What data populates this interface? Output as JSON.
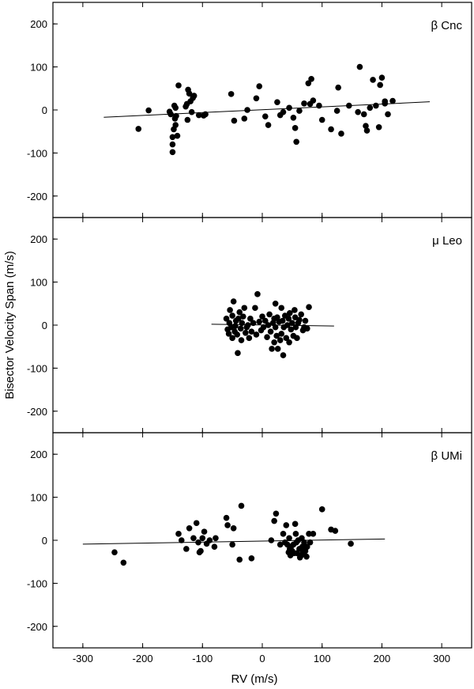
{
  "chart_data": [
    {
      "type": "scatter",
      "label": "β Cnc",
      "xlim": [
        -350,
        350
      ],
      "ylim": [
        -250,
        250
      ],
      "x_ticks": [
        -300,
        -200,
        -100,
        0,
        100,
        200,
        300
      ],
      "y_ticks": [
        -200,
        -100,
        0,
        100,
        200
      ],
      "fit_line": {
        "x": [
          -265,
          280
        ],
        "y": [
          -17,
          19
        ]
      },
      "points": [
        [
          -207,
          -44
        ],
        [
          -190,
          -1
        ],
        [
          -155,
          -4
        ],
        [
          -153,
          -10
        ],
        [
          -150,
          -63
        ],
        [
          -150,
          -80
        ],
        [
          -150,
          -98
        ],
        [
          -148,
          -45
        ],
        [
          -146,
          -20
        ],
        [
          -145,
          -35
        ],
        [
          -147,
          10
        ],
        [
          -145,
          5
        ],
        [
          -144,
          -14
        ],
        [
          -142,
          -60
        ],
        [
          -140,
          57
        ],
        [
          -128,
          8
        ],
        [
          -126,
          14
        ],
        [
          -125,
          -23
        ],
        [
          -124,
          47
        ],
        [
          -122,
          38
        ],
        [
          -120,
          20
        ],
        [
          -118,
          -5
        ],
        [
          -116,
          28
        ],
        [
          -114,
          33
        ],
        [
          -106,
          -12
        ],
        [
          -98,
          -13
        ],
        [
          -95,
          -10
        ],
        [
          -52,
          37
        ],
        [
          -47,
          -25
        ],
        [
          -30,
          -20
        ],
        [
          -25,
          0
        ],
        [
          -10,
          27
        ],
        [
          -5,
          55
        ],
        [
          5,
          -15
        ],
        [
          10,
          -35
        ],
        [
          25,
          18
        ],
        [
          30,
          -12
        ],
        [
          35,
          -5
        ],
        [
          45,
          5
        ],
        [
          52,
          -18
        ],
        [
          55,
          -42
        ],
        [
          57,
          -74
        ],
        [
          62,
          -2
        ],
        [
          70,
          15
        ],
        [
          77,
          62
        ],
        [
          80,
          14
        ],
        [
          82,
          72
        ],
        [
          85,
          22
        ],
        [
          95,
          10
        ],
        [
          100,
          -23
        ],
        [
          115,
          -45
        ],
        [
          125,
          -2
        ],
        [
          127,
          52
        ],
        [
          132,
          -55
        ],
        [
          145,
          10
        ],
        [
          160,
          -5
        ],
        [
          163,
          100
        ],
        [
          170,
          -10
        ],
        [
          173,
          -37
        ],
        [
          175,
          -48
        ],
        [
          180,
          5
        ],
        [
          185,
          70
        ],
        [
          190,
          10
        ],
        [
          195,
          -40
        ],
        [
          197,
          58
        ],
        [
          200,
          75
        ],
        [
          205,
          20
        ],
        [
          205,
          15
        ],
        [
          210,
          -10
        ],
        [
          218,
          21
        ]
      ]
    },
    {
      "type": "scatter",
      "label": "μ Leo",
      "xlim": [
        -350,
        350
      ],
      "ylim": [
        -250,
        250
      ],
      "x_ticks": [
        -300,
        -200,
        -100,
        0,
        100,
        200,
        300
      ],
      "y_ticks": [
        -200,
        -100,
        0,
        100,
        200
      ],
      "fit_line": {
        "x": [
          -85,
          120
        ],
        "y": [
          2,
          -2
        ]
      },
      "points": [
        [
          -60,
          15
        ],
        [
          -58,
          -10
        ],
        [
          -56,
          -20
        ],
        [
          -55,
          5
        ],
        [
          -54,
          35
        ],
        [
          -52,
          -5
        ],
        [
          -50,
          22
        ],
        [
          -50,
          -30
        ],
        [
          -48,
          55
        ],
        [
          -46,
          -15
        ],
        [
          -45,
          -2
        ],
        [
          -44,
          10
        ],
        [
          -42,
          -22
        ],
        [
          -41,
          -65
        ],
        [
          -40,
          15
        ],
        [
          -38,
          30
        ],
        [
          -36,
          -8
        ],
        [
          -35,
          -35
        ],
        [
          -34,
          5
        ],
        [
          -32,
          20
        ],
        [
          -30,
          40
        ],
        [
          -28,
          -18
        ],
        [
          -26,
          -5
        ],
        [
          -24,
          0
        ],
        [
          -22,
          -30
        ],
        [
          -20,
          15
        ],
        [
          -18,
          -15
        ],
        [
          -15,
          5
        ],
        [
          -12,
          40
        ],
        [
          -10,
          -22
        ],
        [
          -8,
          72
        ],
        [
          -5,
          8
        ],
        [
          -2,
          -12
        ],
        [
          0,
          20
        ],
        [
          2,
          -5
        ],
        [
          5,
          10
        ],
        [
          8,
          -28
        ],
        [
          10,
          0
        ],
        [
          12,
          25
        ],
        [
          14,
          -15
        ],
        [
          16,
          -55
        ],
        [
          18,
          5
        ],
        [
          20,
          15
        ],
        [
          20,
          -40
        ],
        [
          22,
          50
        ],
        [
          22,
          -5
        ],
        [
          24,
          -25
        ],
        [
          25,
          18
        ],
        [
          26,
          -55
        ],
        [
          28,
          8
        ],
        [
          30,
          -35
        ],
        [
          32,
          -20
        ],
        [
          32,
          40
        ],
        [
          34,
          10
        ],
        [
          35,
          -70
        ],
        [
          36,
          -5
        ],
        [
          38,
          22
        ],
        [
          40,
          -30
        ],
        [
          42,
          0
        ],
        [
          44,
          15
        ],
        [
          45,
          -40
        ],
        [
          46,
          28
        ],
        [
          48,
          -10
        ],
        [
          50,
          5
        ],
        [
          52,
          -25
        ],
        [
          54,
          35
        ],
        [
          55,
          18
        ],
        [
          56,
          -5
        ],
        [
          58,
          -30
        ],
        [
          60,
          5
        ],
        [
          62,
          12
        ],
        [
          65,
          25
        ],
        [
          68,
          -12
        ],
        [
          70,
          -5
        ],
        [
          72,
          10
        ],
        [
          75,
          -8
        ],
        [
          78,
          42
        ]
      ]
    },
    {
      "type": "scatter",
      "label": "β UMi",
      "xlim": [
        -350,
        350
      ],
      "ylim": [
        -250,
        250
      ],
      "x_ticks": [
        -300,
        -200,
        -100,
        0,
        100,
        200,
        300
      ],
      "y_ticks": [
        -200,
        -100,
        0,
        100,
        200
      ],
      "fit_line": {
        "x": [
          -300,
          205
        ],
        "y": [
          -9,
          3
        ]
      },
      "points": [
        [
          -247,
          -28
        ],
        [
          -232,
          -52
        ],
        [
          -140,
          15
        ],
        [
          -135,
          0
        ],
        [
          -127,
          -20
        ],
        [
          -122,
          28
        ],
        [
          -115,
          5
        ],
        [
          -110,
          40
        ],
        [
          -107,
          -5
        ],
        [
          -105,
          -28
        ],
        [
          -103,
          -25
        ],
        [
          -100,
          5
        ],
        [
          -97,
          20
        ],
        [
          -93,
          -8
        ],
        [
          -88,
          0
        ],
        [
          -80,
          -15
        ],
        [
          -78,
          5
        ],
        [
          -60,
          52
        ],
        [
          -58,
          35
        ],
        [
          -50,
          -10
        ],
        [
          -48,
          28
        ],
        [
          -38,
          -45
        ],
        [
          -35,
          80
        ],
        [
          -18,
          -42
        ],
        [
          15,
          0
        ],
        [
          20,
          45
        ],
        [
          23,
          62
        ],
        [
          30,
          -10
        ],
        [
          35,
          15
        ],
        [
          38,
          -5
        ],
        [
          40,
          35
        ],
        [
          42,
          -10
        ],
        [
          44,
          -28
        ],
        [
          45,
          5
        ],
        [
          46,
          -20
        ],
        [
          47,
          -35
        ],
        [
          48,
          -15
        ],
        [
          50,
          -25
        ],
        [
          52,
          -10
        ],
        [
          53,
          -30
        ],
        [
          55,
          38
        ],
        [
          56,
          15
        ],
        [
          57,
          -5
        ],
        [
          58,
          -30
        ],
        [
          60,
          0
        ],
        [
          62,
          -20
        ],
        [
          63,
          -40
        ],
        [
          65,
          -35
        ],
        [
          66,
          5
        ],
        [
          67,
          -15
        ],
        [
          68,
          -28
        ],
        [
          70,
          -5
        ],
        [
          72,
          -25
        ],
        [
          74,
          -38
        ],
        [
          75,
          -15
        ],
        [
          78,
          15
        ],
        [
          80,
          -5
        ],
        [
          85,
          15
        ],
        [
          100,
          72
        ],
        [
          115,
          25
        ],
        [
          122,
          22
        ],
        [
          148,
          -8
        ]
      ]
    }
  ],
  "axes": {
    "xlabel": "RV (m/s)",
    "ylabel": "Bisector Velocity Span (m/s)"
  }
}
